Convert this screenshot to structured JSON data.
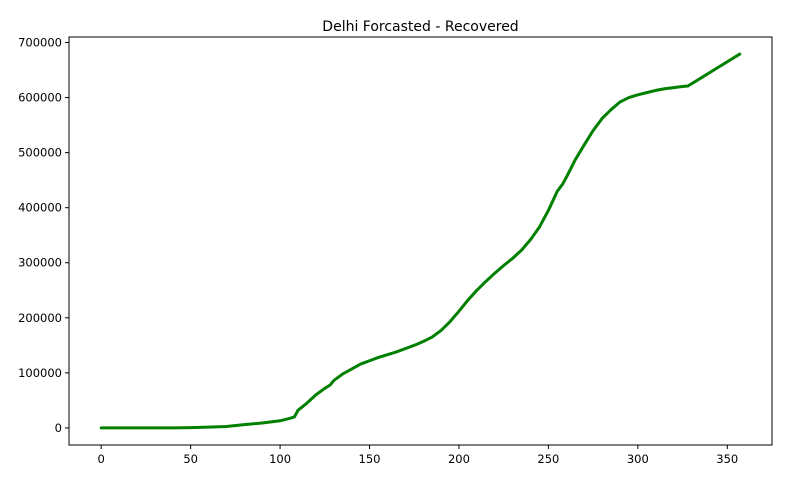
{
  "chart_data": {
    "type": "line",
    "title": "Delhi Forcasted - Recovered",
    "xlabel": "",
    "ylabel": "",
    "xlim": [
      -18,
      375
    ],
    "ylim": [
      -31000,
      710000
    ],
    "grid": false,
    "legend": "none",
    "xticks": [
      0,
      50,
      100,
      150,
      200,
      250,
      300,
      350
    ],
    "yticks": [
      0,
      100000,
      200000,
      300000,
      400000,
      500000,
      600000,
      700000
    ],
    "series": [
      {
        "color": "#008000",
        "x": [
          0,
          10,
          20,
          30,
          40,
          50,
          60,
          70,
          80,
          90,
          100,
          105,
          108,
          110,
          115,
          120,
          125,
          128,
          130,
          135,
          140,
          145,
          150,
          155,
          160,
          165,
          170,
          175,
          180,
          185,
          190,
          195,
          200,
          205,
          210,
          215,
          220,
          225,
          230,
          235,
          240,
          245,
          250,
          255,
          258,
          260,
          265,
          270,
          275,
          280,
          285,
          290,
          295,
          300,
          305,
          310,
          315,
          320,
          325,
          328,
          335,
          345,
          357
        ],
        "y": [
          0,
          0,
          0,
          0,
          0,
          500,
          1500,
          2500,
          6000,
          9000,
          13000,
          17000,
          20000,
          32000,
          45000,
          60000,
          72000,
          78000,
          86000,
          98000,
          107000,
          116000,
          122000,
          128000,
          133000,
          138000,
          144000,
          150000,
          157000,
          165000,
          177000,
          193000,
          212000,
          232000,
          250000,
          266000,
          281000,
          295000,
          308000,
          323000,
          342000,
          365000,
          395000,
          430000,
          443000,
          455000,
          487000,
          514000,
          540000,
          562000,
          578000,
          592000,
          600000,
          605000,
          609000,
          613000,
          616000,
          618000,
          620000,
          621000,
          635000,
          655000,
          679000
        ]
      }
    ]
  }
}
